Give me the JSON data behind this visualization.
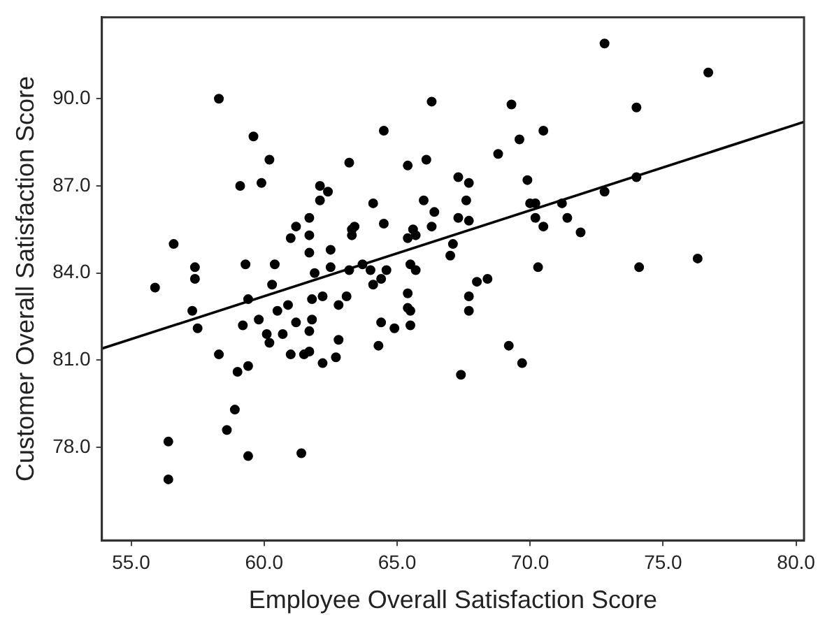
{
  "chart_data": {
    "type": "scatter",
    "xlabel": "Employee Overall Satisfaction Score",
    "ylabel": "Customer Overall Satisfaction Score",
    "xlim": [
      53.9,
      80.3
    ],
    "ylim": [
      74.8,
      92.8
    ],
    "xticks": [
      {
        "value": 55,
        "label": "55.0"
      },
      {
        "value": 60,
        "label": "60.0"
      },
      {
        "value": 65,
        "label": "65.0"
      },
      {
        "value": 70,
        "label": "70.0"
      },
      {
        "value": 75,
        "label": "75.0"
      },
      {
        "value": 80,
        "label": "80.0"
      }
    ],
    "yticks": [
      {
        "value": 78,
        "label": "78.0"
      },
      {
        "value": 81,
        "label": "81.0"
      },
      {
        "value": 84,
        "label": "84.0"
      },
      {
        "value": 87,
        "label": "87.0"
      },
      {
        "value": 90,
        "label": "90.0"
      }
    ],
    "grid": false,
    "legend": false,
    "line_style": "solid",
    "series": [
      {
        "type": "scatter",
        "marker": "circle",
        "color": "#000000",
        "x": [
          58.3,
          59.6,
          60.2,
          63.2,
          59.1,
          59.9,
          62.1,
          62.4,
          62.1,
          61.7,
          61.2,
          61.7,
          61.0,
          62.5,
          61.7,
          56.6,
          57.4,
          59.3,
          60.4,
          62.5,
          63.3,
          63.3,
          61.9,
          55.9,
          57.4,
          60.3,
          63.2,
          59.4,
          60.9,
          61.8,
          62.2,
          63.1,
          62.8,
          57.3,
          57.5,
          59.2,
          59.8,
          60.5,
          61.2,
          61.8,
          60.1,
          60.7,
          61.7,
          60.2,
          62.8,
          58.3,
          61.0,
          61.5,
          61.7,
          62.7,
          62.2,
          59.4,
          59.0,
          58.9,
          58.6,
          56.4,
          59.4,
          61.4,
          56.4,
          66.3,
          69.3,
          64.5,
          70.5,
          69.6,
          68.8,
          65.4,
          66.1,
          67.3,
          67.7,
          69.9,
          66.0,
          67.6,
          64.1,
          70.0,
          70.2,
          71.2,
          66.4,
          67.3,
          67.7,
          70.2,
          71.4,
          63.4,
          64.5,
          66.3,
          70.5,
          65.6,
          65.4,
          65.7,
          67.1,
          67.0,
          71.9,
          63.7,
          64.0,
          64.6,
          65.5,
          65.7,
          70.3,
          68.0,
          68.4,
          64.4,
          64.1,
          65.4,
          67.7,
          65.4,
          65.5,
          67.7,
          64.4,
          64.9,
          65.5,
          64.3,
          69.2,
          69.7,
          67.4,
          72.8,
          76.7,
          74.0,
          74.0,
          72.8,
          74.1,
          76.3
        ],
        "values": [
          90.0,
          88.7,
          87.9,
          87.8,
          87.0,
          87.1,
          87.0,
          86.8,
          86.5,
          85.9,
          85.6,
          85.3,
          85.2,
          84.8,
          84.7,
          85.0,
          84.2,
          84.3,
          84.3,
          84.2,
          85.5,
          85.3,
          84.0,
          83.5,
          83.8,
          83.6,
          84.1,
          83.1,
          82.9,
          83.1,
          83.2,
          83.2,
          82.9,
          82.7,
          82.1,
          82.2,
          82.4,
          82.7,
          82.3,
          82.4,
          81.9,
          81.9,
          82.0,
          81.6,
          81.7,
          81.2,
          81.2,
          81.2,
          81.3,
          81.1,
          80.9,
          80.8,
          80.6,
          79.3,
          78.6,
          78.2,
          77.7,
          77.8,
          76.9,
          89.9,
          89.8,
          88.9,
          88.9,
          88.6,
          88.1,
          87.7,
          87.9,
          87.3,
          87.1,
          87.2,
          86.5,
          86.5,
          86.4,
          86.4,
          86.4,
          86.4,
          86.1,
          85.9,
          85.8,
          85.9,
          85.9,
          85.6,
          85.7,
          85.6,
          85.6,
          85.5,
          85.2,
          85.3,
          85.0,
          84.6,
          85.4,
          84.3,
          84.1,
          84.1,
          84.3,
          84.1,
          84.2,
          83.7,
          83.8,
          83.8,
          83.6,
          83.3,
          83.2,
          82.8,
          82.7,
          82.7,
          82.3,
          82.1,
          82.2,
          81.5,
          81.5,
          80.9,
          80.5,
          91.9,
          90.9,
          89.7,
          87.3,
          86.8,
          84.2,
          84.5
        ]
      },
      {
        "type": "line",
        "marker": "none",
        "color": "#000000",
        "x": [
          53.9,
          80.3
        ],
        "values": [
          81.4,
          89.2
        ]
      }
    ]
  }
}
